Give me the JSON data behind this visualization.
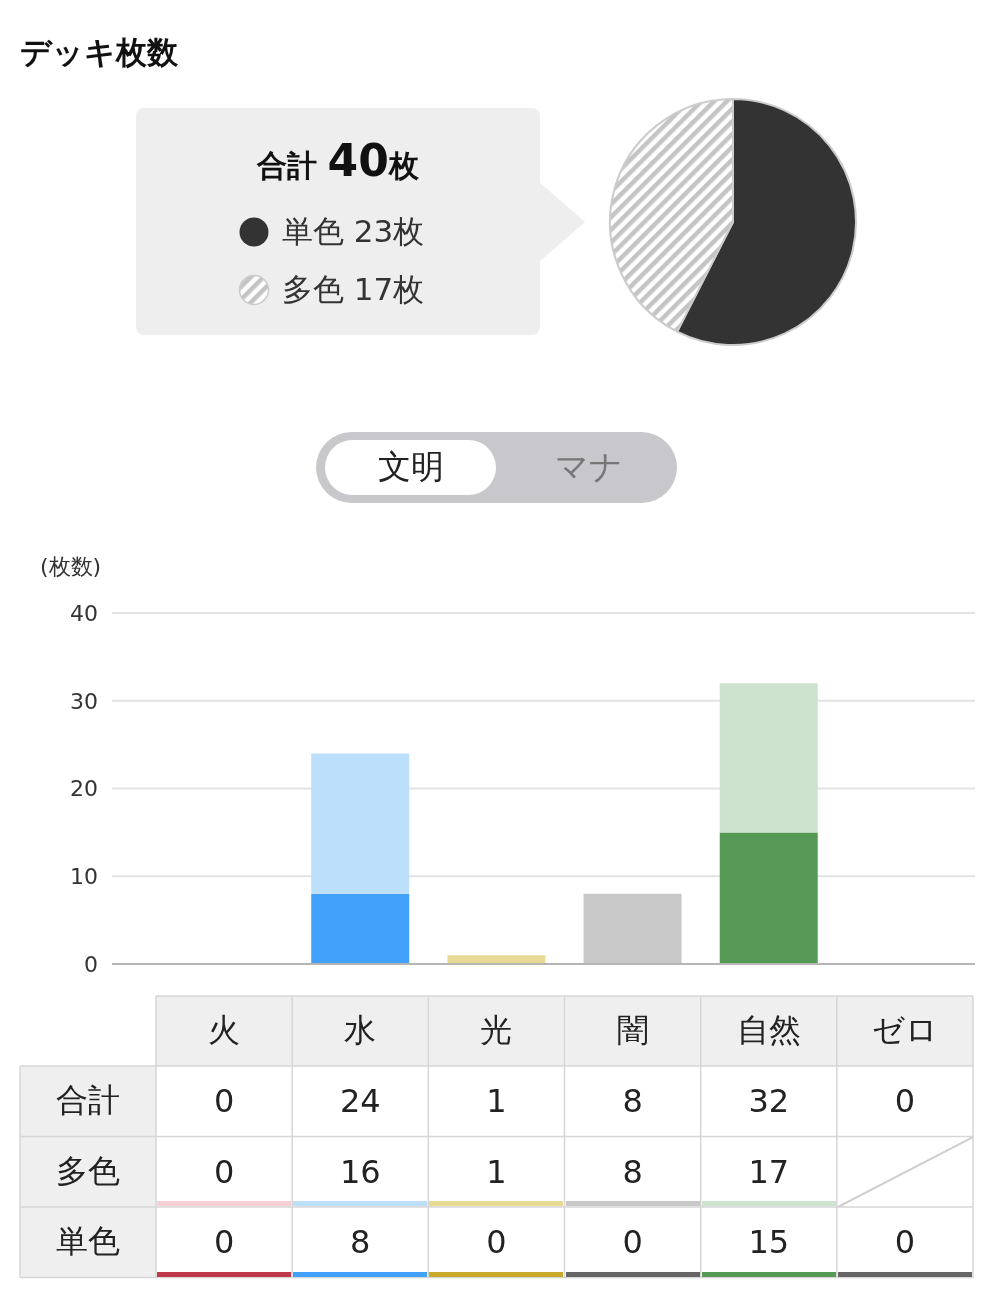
{
  "chart_data": [
    {
      "type": "pie",
      "title": "デッキ枚数",
      "categories": [
        "単色",
        "多色"
      ],
      "values": [
        23,
        17
      ],
      "colors": [
        "#333333",
        "#c4c4c4"
      ],
      "value_labels": [
        "23枚",
        "17枚"
      ],
      "legend": "left",
      "annotations": [
        "合計 40枚"
      ]
    },
    {
      "type": "other",
      "annotations": [
        "文明",
        "マナ"
      ]
    },
    {
      "type": "bar",
      "ylabel": "(枚数)",
      "categories": [
        "火",
        "水",
        "光",
        "闇",
        "自然",
        "ゼロ"
      ],
      "stacked": true,
      "series": [
        {
          "colors": [
            "#c0394b",
            "#42a2fb",
            "#c9a92b",
            "#666666",
            "#559955",
            "#666666"
          ],
          "values": [
            0,
            8,
            0,
            0,
            15,
            0
          ]
        },
        {
          "colors": [
            "#f7cfd7",
            "#bcdffc",
            "#e8d995",
            "#c8c8c8",
            "#cde3cd",
            null
          ],
          "values": [
            0,
            16,
            1,
            8,
            17,
            null
          ]
        }
      ],
      "ylim": [
        0,
        40
      ],
      "yticks": [
        0,
        10,
        20,
        30,
        40
      ],
      "grid": "y",
      "data_labels": true,
      "annotations": [
        "合計",
        "0",
        "24",
        "1",
        "8",
        "32",
        "0",
        "多色",
        "単色"
      ]
    }
  ]
}
